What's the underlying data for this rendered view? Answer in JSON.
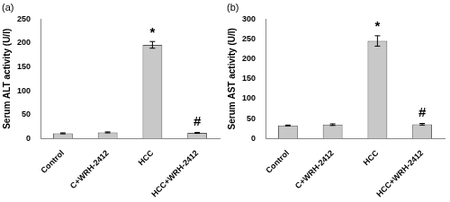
{
  "chart_data": [
    {
      "type": "bar",
      "title": "(a)",
      "y_label": "Serum ALT activity (U/l)",
      "categories": [
        "Control",
        "C+WRH-2412",
        "HCC",
        "HCC+WRH-2412"
      ],
      "values": [
        11,
        13,
        196,
        12
      ],
      "errors": [
        1,
        1,
        7,
        1
      ],
      "annotations": [
        {
          "category": "HCC",
          "text": "*"
        },
        {
          "category": "HCC+WRH-2412",
          "text": "#"
        }
      ],
      "color": "#c8c8c8",
      "ylim": [
        0,
        250
      ],
      "yticks": [
        0,
        50,
        100,
        150,
        200,
        250
      ],
      "grid": false
    },
    {
      "type": "bar",
      "title": "(b)",
      "y_label": "Serum AST activity (U/l)",
      "categories": [
        "Control",
        "C+WRH-2412",
        "HCC",
        "HCC+WRH-2412"
      ],
      "values": [
        33,
        35,
        245,
        36
      ],
      "errors": [
        1,
        2,
        13,
        2
      ],
      "annotations": [
        {
          "category": "HCC",
          "text": "*"
        },
        {
          "category": "HCC+WRH-2412",
          "text": "#"
        }
      ],
      "color": "#c8c8c8",
      "ylim": [
        0,
        300
      ],
      "yticks": [
        0,
        50,
        100,
        150,
        200,
        250,
        300
      ],
      "grid": false
    }
  ]
}
